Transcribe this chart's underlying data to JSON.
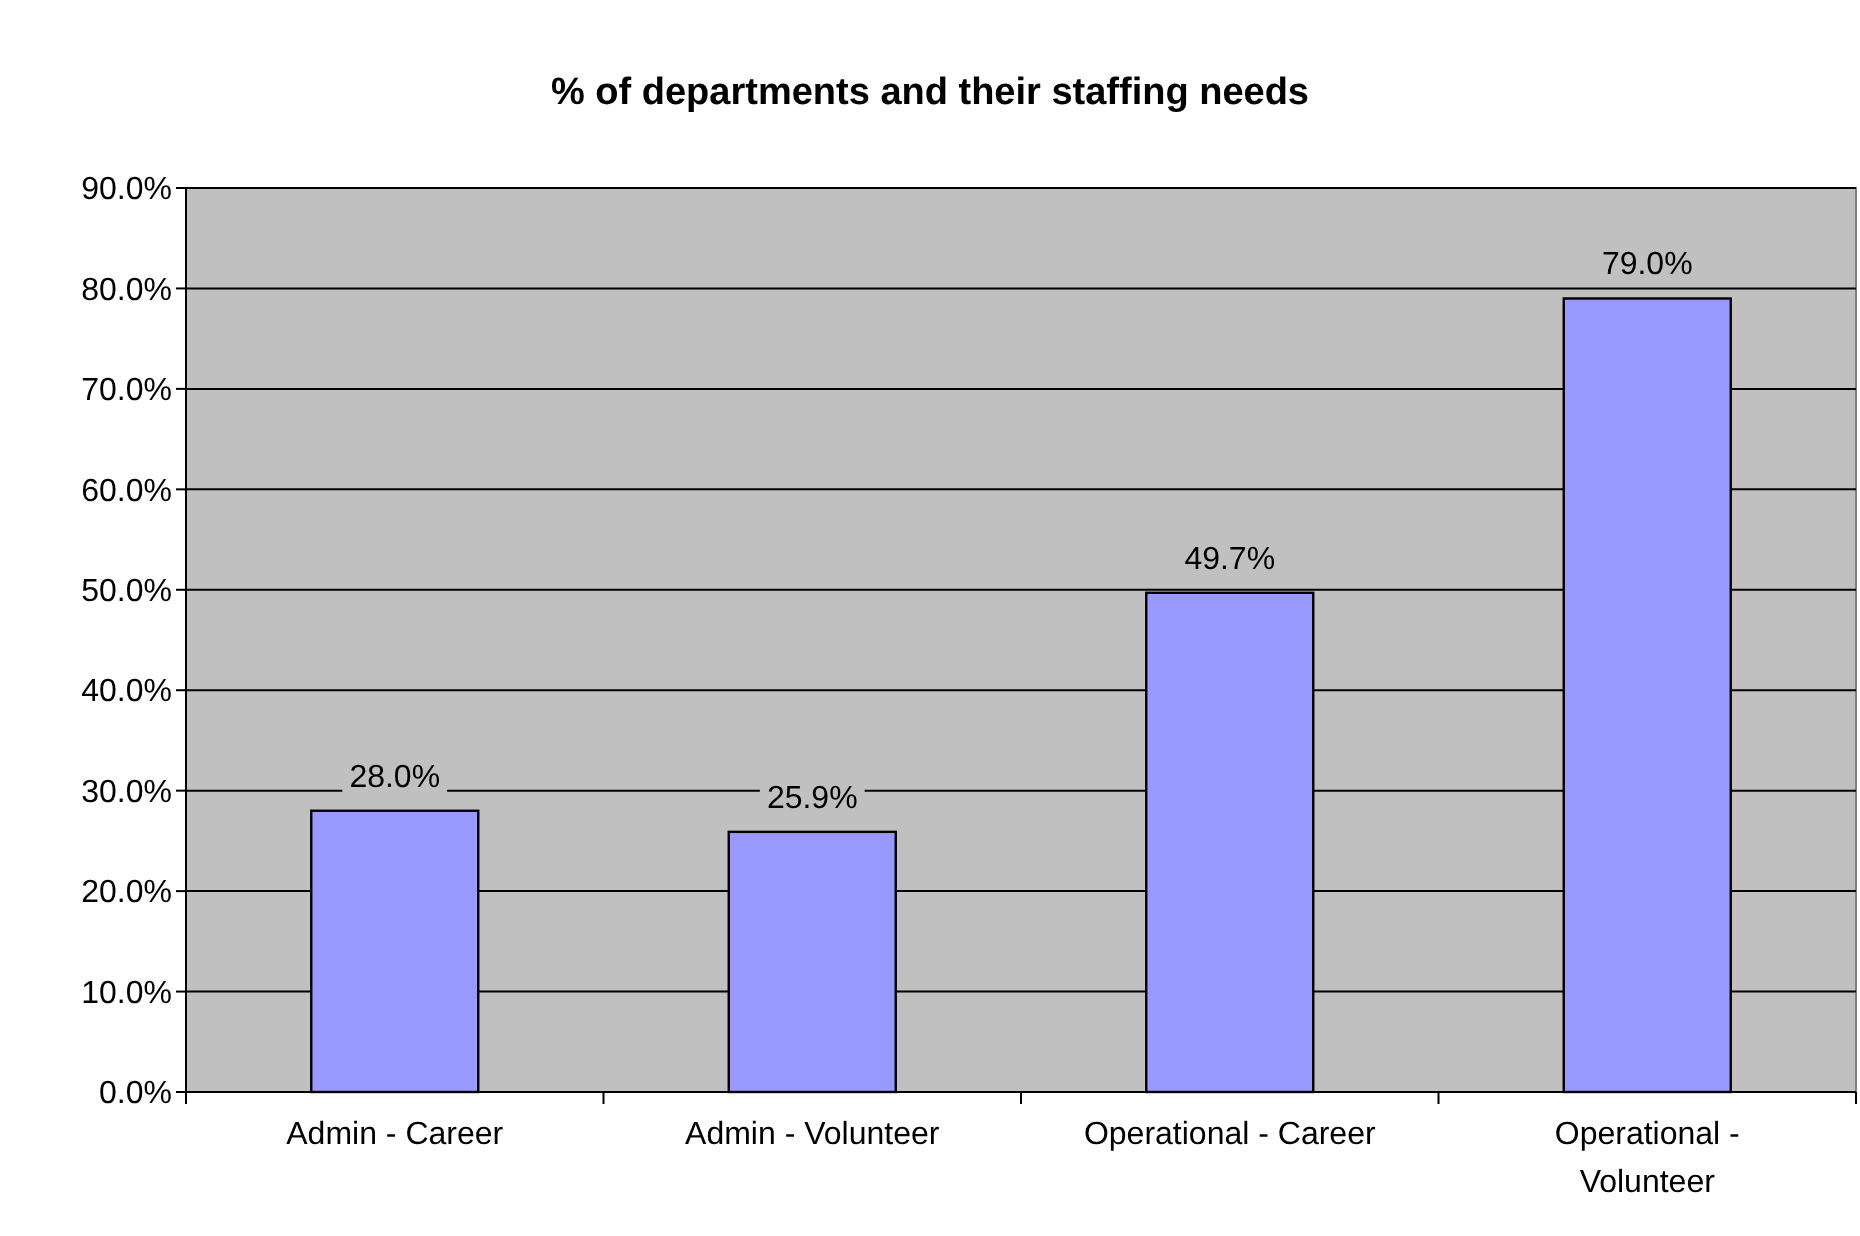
{
  "chart_data": {
    "type": "bar",
    "title": "% of departments and their staffing needs",
    "categories": [
      "Admin - Career",
      "Admin - Volunteer",
      "Operational - Career",
      "Operational - Volunteer"
    ],
    "values": [
      28.0,
      25.9,
      49.7,
      79.0
    ],
    "value_labels": [
      "28.0%",
      "25.9%",
      "49.7%",
      "79.0%"
    ],
    "color": "#9999ff",
    "ylim": [
      0,
      90
    ],
    "yticks": [
      {
        "value": 0,
        "label": "0.0%"
      },
      {
        "value": 10,
        "label": "10.0%"
      },
      {
        "value": 20,
        "label": "20.0%"
      },
      {
        "value": 30,
        "label": "30.0%"
      },
      {
        "value": 40,
        "label": "40.0%"
      },
      {
        "value": 50,
        "label": "50.0%"
      },
      {
        "value": 60,
        "label": "60.0%"
      },
      {
        "value": 70,
        "label": "70.0%"
      },
      {
        "value": 80,
        "label": "80.0%"
      },
      {
        "value": 90,
        "label": "90.0%"
      }
    ],
    "grid": "y"
  }
}
